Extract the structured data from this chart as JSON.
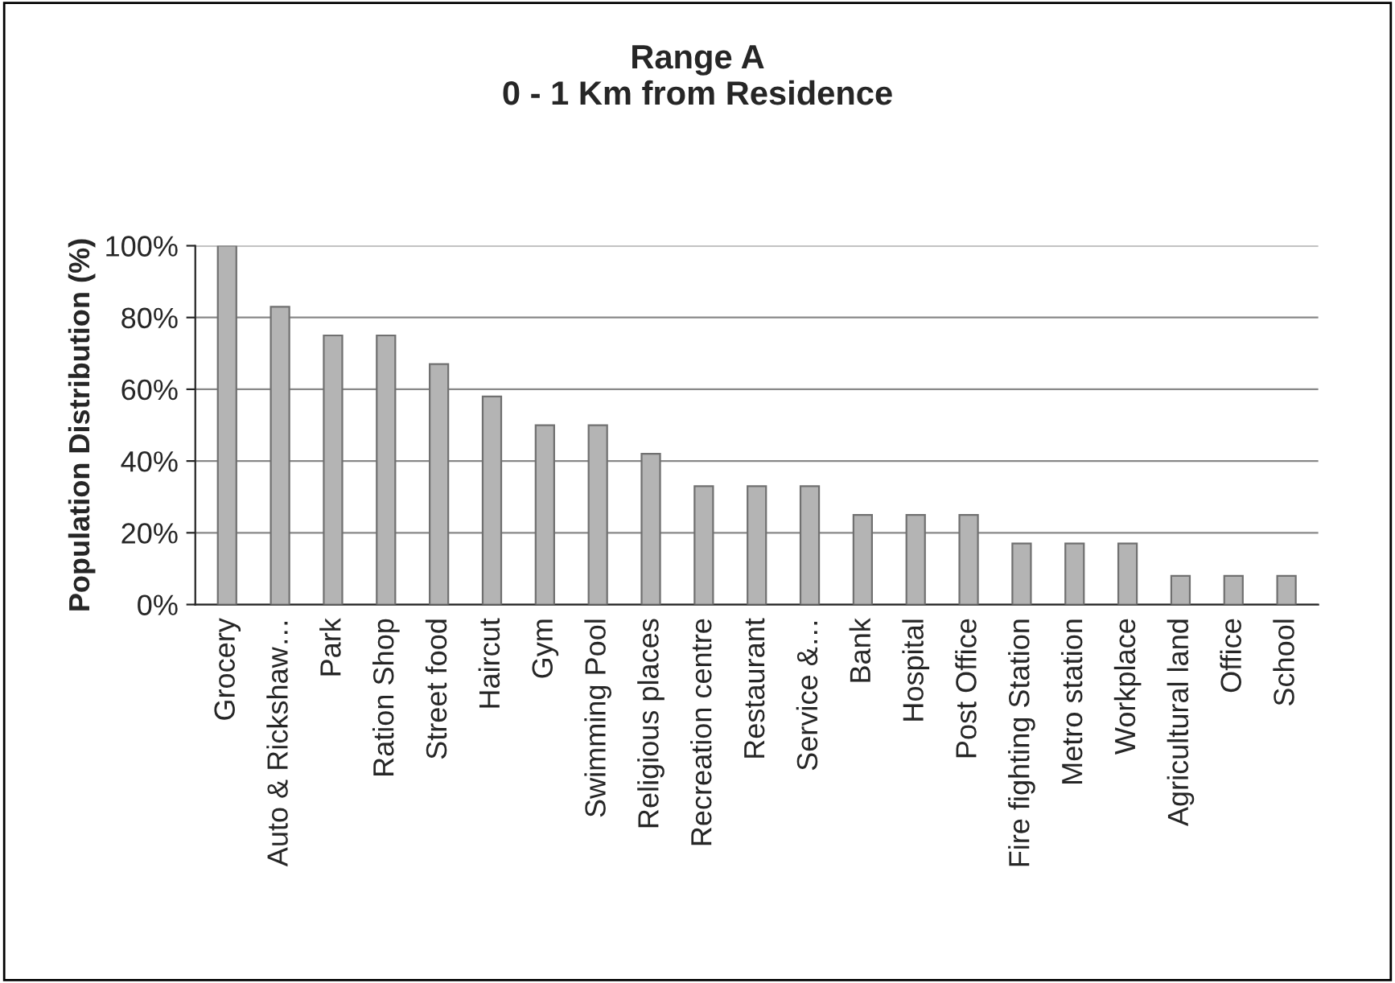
{
  "chart_data": {
    "type": "bar",
    "title": "Range A\n0 - 1 Km from Residence",
    "ylabel": "Population Distribution (%)",
    "categories": [
      "Grocery",
      "Auto & Rickshaw…",
      "Park",
      "Ration Shop",
      "Street food",
      "Haircut",
      "Gym",
      "Swimming Pool",
      "Religious places",
      "Recreation centre",
      "Restaurant",
      "Service &…",
      "Bank",
      "Hospital",
      "Post Office",
      "Fire fighting Station",
      "Metro station",
      "Workplace",
      "Agricultural land",
      "Office",
      "School"
    ],
    "values": [
      100,
      83,
      75,
      75,
      67,
      58,
      50,
      50,
      42,
      33,
      33,
      33,
      25,
      25,
      25,
      17,
      17,
      17,
      8,
      8,
      8
    ],
    "color": "#b4b4b4",
    "ylim": [
      0,
      100
    ],
    "yticks": [
      {
        "value": 0,
        "label": "0%"
      },
      {
        "value": 20,
        "label": "20%"
      },
      {
        "value": 40,
        "label": "40%"
      },
      {
        "value": 60,
        "label": "60%"
      },
      {
        "value": 80,
        "label": "80%"
      },
      {
        "value": 100,
        "label": "100%"
      }
    ],
    "grid": "y"
  }
}
